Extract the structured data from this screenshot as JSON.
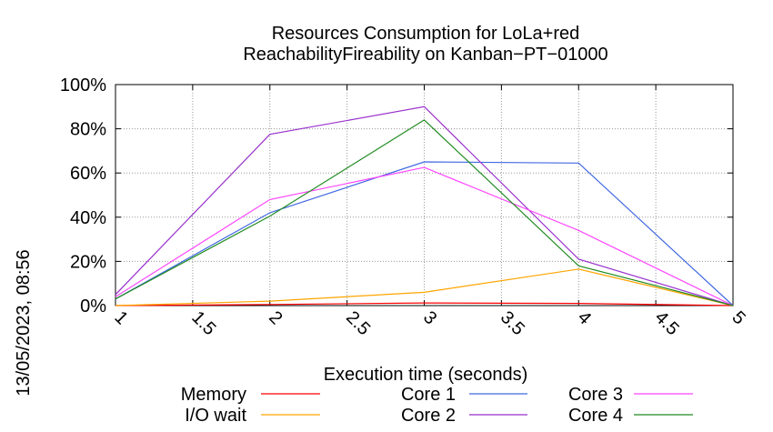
{
  "timestamp": "13/05/2023, 08:56",
  "chart_data": {
    "type": "line",
    "title_lines": [
      "Resources Consumption for LoLa+red",
      "ReachabilityFireability on Kanban−PT−01000"
    ],
    "xlabel": "Execution time (seconds)",
    "ylabel": "",
    "xlim": [
      1,
      5
    ],
    "ylim": [
      0,
      100
    ],
    "x_ticks": [
      1,
      1.5,
      2,
      2.5,
      3,
      3.5,
      4,
      4.5,
      5
    ],
    "x_tick_labels": [
      "1",
      "1.5",
      "2",
      "2.5",
      "3",
      "3.5",
      "4",
      "4.5",
      "5"
    ],
    "y_ticks": [
      0,
      20,
      40,
      60,
      80,
      100
    ],
    "y_tick_labels": [
      "0%",
      "20%",
      "40%",
      "60%",
      "80%",
      "100%"
    ],
    "grid": true,
    "legend_position": "bottom",
    "series": [
      {
        "name": "Memory",
        "color": "#ff0000",
        "x": [
          1,
          2,
          3,
          4,
          5
        ],
        "values": [
          0,
          0.5,
          1.2,
          1.0,
          0
        ]
      },
      {
        "name": "I/O wait",
        "color": "#ffa500",
        "x": [
          1,
          2,
          3,
          4,
          5
        ],
        "values": [
          0,
          2,
          6,
          16.5,
          0
        ]
      },
      {
        "name": "Core 1",
        "color": "#4169e1",
        "x": [
          1,
          2,
          3,
          4,
          5
        ],
        "values": [
          3,
          42,
          65,
          64.5,
          0
        ]
      },
      {
        "name": "Core 2",
        "color": "#9932cc",
        "x": [
          1,
          2,
          3,
          4,
          5
        ],
        "values": [
          5,
          77.5,
          90,
          21,
          0
        ]
      },
      {
        "name": "Core 3",
        "color": "#ff44ff",
        "x": [
          1,
          2,
          3,
          4,
          5
        ],
        "values": [
          4,
          48,
          62.5,
          34,
          0
        ]
      },
      {
        "name": "Core 4",
        "color": "#228b22",
        "x": [
          1,
          2,
          3,
          4,
          5
        ],
        "values": [
          3,
          40.5,
          84,
          18,
          0
        ]
      }
    ]
  }
}
